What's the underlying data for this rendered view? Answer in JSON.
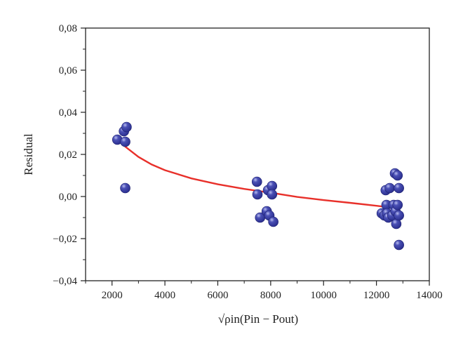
{
  "chart_data": {
    "type": "scatter",
    "title": "",
    "xlabel": "√ρin(Pin − Pout)",
    "ylabel": "Residual",
    "xlim": [
      1000,
      14000
    ],
    "ylim": [
      -0.04,
      0.08
    ],
    "x_ticks": [
      2000,
      4000,
      6000,
      8000,
      10000,
      12000,
      14000
    ],
    "x_tick_labels": [
      "2000",
      "4000",
      "6000",
      "8000",
      "10000",
      "12000",
      "14000"
    ],
    "y_ticks": [
      -0.04,
      -0.02,
      0.0,
      0.02,
      0.04,
      0.06,
      0.08
    ],
    "y_tick_labels": [
      "−0,04",
      "−0,02",
      "0,00",
      "0,02",
      "0,04",
      "0,06",
      "0,08"
    ],
    "grid": false,
    "point_color": "#2b2f8f",
    "curve_color": "#e8302a",
    "series": [
      {
        "type": "scatter",
        "points": [
          [
            2200,
            0.027
          ],
          [
            2450,
            0.031
          ],
          [
            2550,
            0.033
          ],
          [
            2500,
            0.026
          ],
          [
            2500,
            0.004
          ],
          [
            7480,
            0.007
          ],
          [
            7500,
            0.001
          ],
          [
            7600,
            -0.01
          ],
          [
            7850,
            -0.007
          ],
          [
            7900,
            0.003
          ],
          [
            7950,
            -0.009
          ],
          [
            8050,
            0.005
          ],
          [
            8050,
            0.001
          ],
          [
            8100,
            -0.012
          ],
          [
            12200,
            -0.008
          ],
          [
            12300,
            -0.009
          ],
          [
            12350,
            0.003
          ],
          [
            12380,
            -0.004
          ],
          [
            12400,
            -0.008
          ],
          [
            12450,
            -0.01
          ],
          [
            12500,
            0.004
          ],
          [
            12600,
            -0.009
          ],
          [
            12650,
            -0.004
          ],
          [
            12700,
            0.011
          ],
          [
            12720,
            -0.007
          ],
          [
            12750,
            -0.013
          ],
          [
            12800,
            0.01
          ],
          [
            12800,
            -0.004
          ],
          [
            12850,
            0.004
          ],
          [
            12850,
            -0.009
          ],
          [
            12850,
            -0.023
          ]
        ]
      },
      {
        "type": "line",
        "points": [
          [
            2200,
            0.028
          ],
          [
            2500,
            0.0237
          ],
          [
            3000,
            0.0188
          ],
          [
            3500,
            0.0152
          ],
          [
            4000,
            0.0125
          ],
          [
            5000,
            0.0086
          ],
          [
            6000,
            0.0058
          ],
          [
            7000,
            0.0036
          ],
          [
            8000,
            0.0018
          ],
          [
            9000,
            -0.0002
          ],
          [
            10000,
            -0.0017
          ],
          [
            11000,
            -0.003
          ],
          [
            12000,
            -0.0044
          ],
          [
            12800,
            -0.0056
          ]
        ]
      }
    ]
  }
}
